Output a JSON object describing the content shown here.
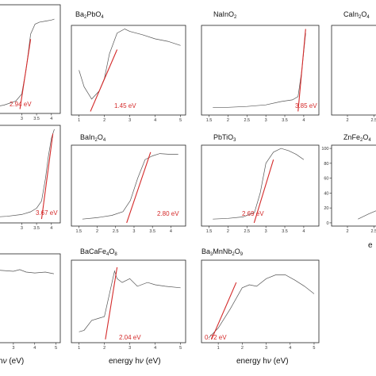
{
  "colors": {
    "curve": "#555555",
    "fit": "#d42a2a",
    "frame": "#222222"
  },
  "chart_data": [
    {
      "type": "line",
      "id": "p-r0c0",
      "title_html": "",
      "gap_label": "2.94 eV",
      "xlim": [
        2.0,
        4.3
      ],
      "ylim": [
        0,
        1
      ],
      "xticks": [
        3.0,
        3.5,
        4.0
      ],
      "x": [
        2.0,
        2.4,
        2.8,
        3.0,
        3.15,
        3.3,
        3.45,
        3.6,
        3.8,
        4.0,
        4.1
      ],
      "y": [
        0.02,
        0.04,
        0.08,
        0.15,
        0.4,
        0.75,
        0.85,
        0.87,
        0.88,
        0.89,
        0.9
      ],
      "fit": [
        [
          2.94,
          0.0
        ],
        [
          3.3,
          0.7
        ]
      ]
    },
    {
      "type": "line",
      "id": "p-r0c1",
      "title_html": "Ba<tspan font-size='6' dy='2'>2</tspan><tspan dy='-2'>PbO</tspan><tspan font-size='6' dy='2'>4</tspan>",
      "gap_label": "1.45 eV",
      "xlim": [
        0.7,
        5.2
      ],
      "ylim": [
        0,
        1
      ],
      "xticks": [
        1,
        2,
        3,
        4,
        5
      ],
      "x": [
        1.0,
        1.2,
        1.5,
        1.8,
        2.0,
        2.2,
        2.5,
        2.8,
        3.0,
        3.5,
        4.0,
        4.5,
        5.0
      ],
      "y": [
        0.5,
        0.3,
        0.15,
        0.25,
        0.4,
        0.7,
        0.95,
        1.0,
        0.97,
        0.93,
        0.88,
        0.85,
        0.8
      ],
      "fit": [
        [
          1.45,
          0.0
        ],
        [
          2.5,
          0.75
        ]
      ]
    },
    {
      "type": "line",
      "id": "p-r0c2",
      "title_html": "NaInO<tspan font-size='6' dy='2'>2</tspan>",
      "gap_label": "3.85 eV",
      "xlim": [
        1.3,
        4.4
      ],
      "ylim": [
        0,
        1
      ],
      "xticks": [
        1.5,
        2.0,
        2.5,
        3.0,
        3.5,
        4.0
      ],
      "x": [
        1.6,
        2.0,
        2.5,
        3.0,
        3.4,
        3.7,
        3.85,
        3.95,
        4.05
      ],
      "y": [
        0.05,
        0.05,
        0.06,
        0.08,
        0.12,
        0.14,
        0.18,
        0.5,
        0.95
      ],
      "fit": [
        [
          3.85,
          0.0
        ],
        [
          4.05,
          1.0
        ]
      ]
    },
    {
      "type": "line",
      "id": "p-r0c3",
      "title_html": "CaIn<tspan font-size='6' dy='2'>2</tspan><tspan dy='-2'>O</tspan><tspan font-size='6' dy='2'>4</tspan>",
      "gap_label": "",
      "xlim": [
        1.7,
        2.6
      ],
      "ylim": [
        0,
        1
      ],
      "xticks": [
        2.0,
        2.5
      ],
      "x": [],
      "y": [],
      "fit": []
    },
    {
      "type": "line",
      "id": "p-r1c0",
      "title_html": "",
      "gap_label": "3.67 eV",
      "xlim": [
        2.0,
        4.3
      ],
      "ylim": [
        0,
        1
      ],
      "xticks": [
        3.0,
        3.5,
        4.0
      ],
      "x": [
        2.0,
        2.5,
        3.0,
        3.3,
        3.5,
        3.67,
        3.8,
        3.9,
        4.0,
        4.1
      ],
      "y": [
        0.02,
        0.03,
        0.05,
        0.08,
        0.12,
        0.2,
        0.45,
        0.7,
        0.9,
        1.0
      ],
      "fit": [
        [
          3.67,
          0.0
        ],
        [
          4.05,
          0.95
        ]
      ]
    },
    {
      "type": "line",
      "id": "p-r1c1",
      "title_html": "BaIn<tspan font-size='6' dy='2'>2</tspan><tspan dy='-2'>O</tspan><tspan font-size='6' dy='2'>4</tspan>",
      "gap_label": "2.80 eV",
      "xlim": [
        1.3,
        4.4
      ],
      "ylim": [
        0,
        1
      ],
      "xticks": [
        1.5,
        2.0,
        2.5,
        3.0,
        3.5,
        4.0
      ],
      "x": [
        1.6,
        2.0,
        2.4,
        2.7,
        2.9,
        3.1,
        3.3,
        3.5,
        3.7,
        4.0,
        4.2
      ],
      "y": [
        0.05,
        0.07,
        0.1,
        0.15,
        0.3,
        0.6,
        0.85,
        0.9,
        0.93,
        0.92,
        0.92
      ],
      "fit": [
        [
          2.8,
          0.0
        ],
        [
          3.45,
          0.95
        ]
      ]
    },
    {
      "type": "line",
      "id": "p-r1c2",
      "title_html": "PbTiO<tspan font-size='6' dy='2'>3</tspan>",
      "gap_label": "2.69 eV",
      "xlim": [
        1.3,
        4.4
      ],
      "ylim": [
        0,
        1
      ],
      "xticks": [
        1.5,
        2.0,
        2.5,
        3.0,
        3.5,
        4.0
      ],
      "x": [
        1.6,
        2.0,
        2.4,
        2.7,
        2.85,
        3.0,
        3.2,
        3.4,
        3.6,
        3.8,
        4.0
      ],
      "y": [
        0.05,
        0.06,
        0.08,
        0.14,
        0.4,
        0.8,
        0.95,
        1.0,
        0.97,
        0.92,
        0.85
      ],
      "fit": [
        [
          2.69,
          0.0
        ],
        [
          3.2,
          0.85
        ]
      ]
    },
    {
      "type": "line",
      "id": "p-r1c3",
      "title_html": "ZnFe<tspan font-size='6' dy='2'>2</tspan><tspan dy='-2'>O</tspan><tspan font-size='6' dy='2'>4</tspan>",
      "gap_label": "",
      "xlim": [
        1.7,
        2.6
      ],
      "ylim": [
        0,
        100
      ],
      "yticks": [
        0,
        20,
        40,
        60,
        80,
        100
      ],
      "xticks": [
        2.0,
        2.5
      ],
      "x": [
        2.2,
        2.4,
        2.6
      ],
      "y": [
        5,
        12,
        18
      ],
      "fit": []
    },
    {
      "type": "line",
      "id": "p-r2c0",
      "title_html": "",
      "gap_label": "",
      "xlim": [
        2.0,
        5.2
      ],
      "ylim": [
        0,
        1
      ],
      "xticks": [
        3,
        4,
        5
      ],
      "x": [
        2.0,
        2.5,
        3.0,
        3.3,
        3.6,
        4.0,
        4.5,
        4.9
      ],
      "y": [
        0.85,
        0.84,
        0.83,
        0.85,
        0.82,
        0.81,
        0.82,
        0.8
      ],
      "fit": []
    },
    {
      "type": "line",
      "id": "p-r2c1",
      "title_html": "BaCaFe<tspan font-size='6' dy='2'>4</tspan><tspan dy='-2'>O</tspan><tspan font-size='6' dy='2'>8</tspan>",
      "gap_label": "2.04 eV",
      "xlim": [
        0.7,
        5.2
      ],
      "ylim": [
        0,
        1
      ],
      "xticks": [
        1,
        2,
        3,
        4,
        5
      ],
      "x": [
        1.0,
        1.2,
        1.5,
        1.8,
        2.0,
        2.2,
        2.4,
        2.5,
        2.7,
        3.0,
        3.3,
        3.7,
        4.0,
        4.4,
        5.0
      ],
      "y": [
        0.1,
        0.12,
        0.25,
        0.28,
        0.3,
        0.6,
        0.9,
        0.8,
        0.75,
        0.8,
        0.7,
        0.75,
        0.72,
        0.7,
        0.68
      ],
      "fit": [
        [
          2.04,
          0.0
        ],
        [
          2.5,
          0.95
        ]
      ]
    },
    {
      "type": "line",
      "id": "p-r2c2",
      "title_html": "Ba<tspan font-size='6' dy='2'>3</tspan><tspan dy='-2'>MnNb</tspan><tspan font-size='6' dy='2'>2</tspan><tspan dy='-2'>O</tspan><tspan font-size='6' dy='2'>9</tspan>",
      "gap_label": "0.72 eV",
      "xlim": [
        0.3,
        5.2
      ],
      "ylim": [
        0,
        1
      ],
      "xticks": [
        1,
        2,
        3,
        4,
        5
      ],
      "x": [
        0.6,
        1.0,
        1.5,
        2.0,
        2.3,
        2.6,
        3.0,
        3.4,
        3.8,
        4.2,
        4.6,
        5.0
      ],
      "y": [
        0.02,
        0.15,
        0.4,
        0.68,
        0.72,
        0.7,
        0.8,
        0.85,
        0.85,
        0.78,
        0.7,
        0.6
      ],
      "fit": [
        [
          0.72,
          0.0
        ],
        [
          1.75,
          0.75
        ]
      ]
    }
  ],
  "axis_labels": [
    "ν (eV)",
    "energy hν (eV)",
    "energy hν (eV)",
    "e"
  ]
}
